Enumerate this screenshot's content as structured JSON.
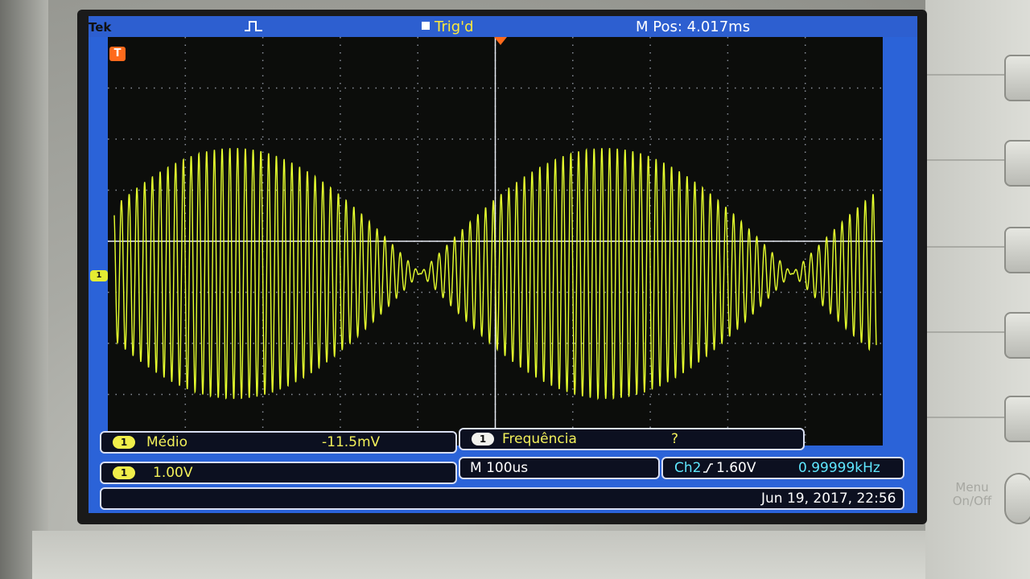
{
  "header": {
    "brand": "Tek",
    "trigger_state": "Trig'd",
    "horizontal_position": "M Pos: 4.017ms"
  },
  "markers": {
    "trigger_marker": "T",
    "channel1_marker": "1"
  },
  "measurements": {
    "mean": {
      "channel": "1",
      "label": "Médio",
      "value": "-11.5mV"
    },
    "frequency": {
      "channel": "1",
      "label": "Frequência",
      "value": "?"
    }
  },
  "status": {
    "ch1_scale": {
      "channel": "1",
      "value": "1.00V"
    },
    "timebase": "M 100us",
    "trigger": {
      "label": "Ch2",
      "slope_icon": "rising-edge-icon",
      "level": "1.60V"
    },
    "trigger_frequency": "0.99999kHz",
    "datetime": "Jun 19, 2017, 22:56"
  },
  "device": {
    "menu_button_label": "Menu\nOn/Off"
  },
  "waveform": {
    "color": "#e6ff2e",
    "carrier_cycles_per_division": 10,
    "envelope_period_divisions": 4.8
  },
  "colors": {
    "screen_blue": "#2b63d8",
    "trace_yellow": "#e6ff2e",
    "trigger_orange": "#ff6a1c",
    "grid_dots": "#8a8f9a"
  }
}
